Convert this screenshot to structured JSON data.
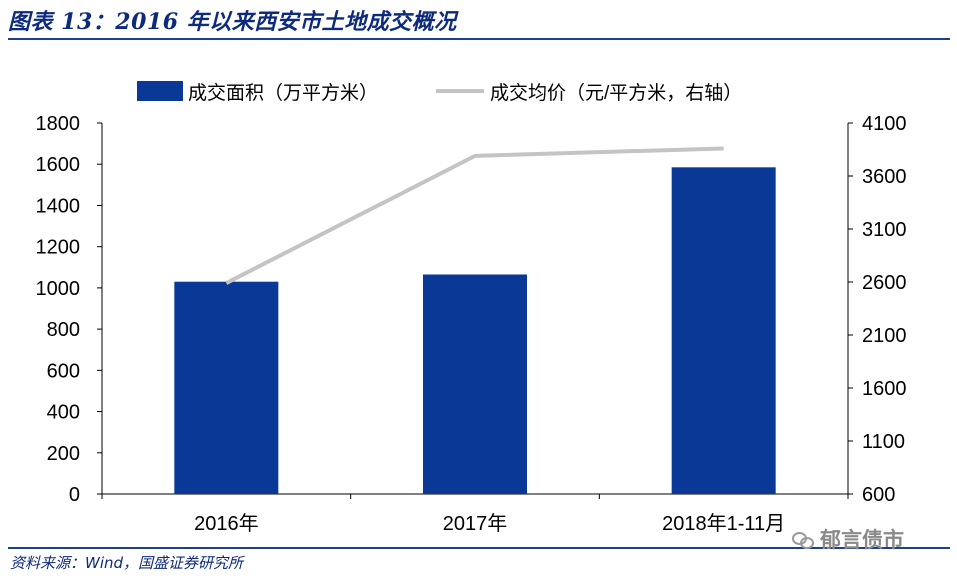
{
  "header": {
    "title": "图表 13：2016 年以来西安市土地成交概况"
  },
  "footer": {
    "source": "资料来源：Wind，国盛证券研究所"
  },
  "watermark": {
    "text": "郁言债市",
    "icon": "wechat-icon"
  },
  "colors": {
    "bar": "#0a3897",
    "line": "#c4c4c4",
    "title": "#0d2a7c",
    "rule": "#1f3f8f"
  },
  "chart_data": {
    "type": "bar",
    "categories": [
      "2016年",
      "2017年",
      "2018年1-11月"
    ],
    "series": [
      {
        "name": "成交面积（万平方米）",
        "type": "bar",
        "axis": "left",
        "values": [
          1030,
          1065,
          1585
        ]
      },
      {
        "name": "成交均价（元/平方米，右轴）",
        "type": "line",
        "axis": "right",
        "values": [
          2590,
          3790,
          3860
        ]
      }
    ],
    "y_left": {
      "ylim": [
        0,
        1800
      ],
      "ticks": [
        0,
        200,
        400,
        600,
        800,
        1000,
        1200,
        1400,
        1600,
        1800
      ]
    },
    "y_right": {
      "ylim": [
        600,
        4100
      ],
      "ticks": [
        600,
        1100,
        1600,
        2100,
        2600,
        3100,
        3600,
        4100
      ]
    },
    "legend": "top",
    "grid": false
  }
}
